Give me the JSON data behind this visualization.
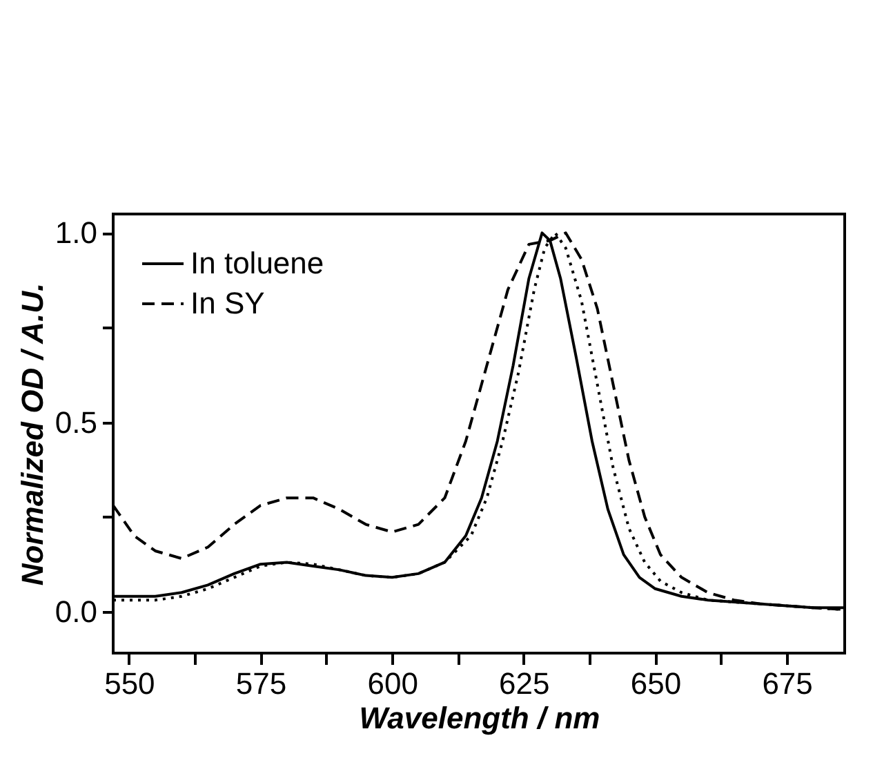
{
  "chart_data": {
    "type": "line",
    "xlabel": "Wavelength / nm",
    "ylabel": "Normalized OD / A.U.",
    "xlim": [
      547,
      686
    ],
    "ylim": [
      -0.11,
      1.05
    ],
    "xticks": [
      550,
      {
        "value": 562.5,
        "label": null
      },
      575,
      {
        "value": 587.5,
        "label": null
      },
      600,
      {
        "value": 612.5,
        "label": null
      },
      625,
      {
        "value": 637.5,
        "label": null
      },
      650,
      {
        "value": 662.5,
        "label": null
      },
      675
    ],
    "yticks": [
      {
        "value": 0,
        "label": "0.0"
      },
      {
        "value": 0.25,
        "label": null
      },
      {
        "value": 0.5,
        "label": "0.5"
      },
      {
        "value": 0.75,
        "label": null
      },
      {
        "value": 1,
        "label": "1.0"
      }
    ],
    "legend": "top left",
    "grid": false,
    "series": [
      {
        "name": "In toluene",
        "color": "#000000",
        "line_style": "solid",
        "x": [
          547,
          555,
          560,
          565,
          570,
          575,
          580,
          585,
          590,
          595,
          600,
          605,
          610,
          614,
          617,
          620,
          623,
          626,
          628.5,
          630,
          632,
          635,
          638,
          641,
          644,
          647,
          650,
          655,
          660,
          670,
          680,
          686
        ],
        "values": [
          0.04,
          0.04,
          0.05,
          0.07,
          0.1,
          0.125,
          0.13,
          0.12,
          0.11,
          0.095,
          0.09,
          0.1,
          0.13,
          0.2,
          0.3,
          0.45,
          0.65,
          0.88,
          1.0,
          0.98,
          0.88,
          0.67,
          0.45,
          0.27,
          0.15,
          0.09,
          0.06,
          0.04,
          0.03,
          0.02,
          0.01,
          0.01
        ]
      },
      {
        "color": "#000000",
        "line_style": "dotted",
        "x": [
          547,
          555,
          560,
          565,
          570,
          575,
          580,
          585,
          590,
          595,
          600,
          605,
          610,
          615,
          618,
          621,
          624,
          627,
          629,
          631,
          633,
          636,
          639,
          642,
          645,
          648,
          651,
          655,
          660,
          670,
          680,
          686
        ],
        "values": [
          0.03,
          0.03,
          0.04,
          0.06,
          0.09,
          0.12,
          0.13,
          0.125,
          0.11,
          0.095,
          0.09,
          0.1,
          0.13,
          0.2,
          0.3,
          0.45,
          0.63,
          0.85,
          0.96,
          1.0,
          0.96,
          0.82,
          0.6,
          0.38,
          0.22,
          0.13,
          0.08,
          0.05,
          0.03,
          0.02,
          0.01,
          0.005
        ]
      },
      {
        "name": "In SY",
        "color": "#000000",
        "line_style": "dashed",
        "x": [
          547,
          551,
          555,
          560,
          565,
          570,
          575,
          580,
          585,
          590,
          595,
          600,
          605,
          610,
          614,
          618,
          622,
          626,
          630,
          633,
          636,
          639,
          642,
          645,
          648,
          651,
          655,
          660,
          665,
          670,
          680,
          686
        ],
        "values": [
          0.28,
          0.2,
          0.16,
          0.14,
          0.17,
          0.23,
          0.28,
          0.3,
          0.3,
          0.27,
          0.23,
          0.21,
          0.23,
          0.3,
          0.45,
          0.65,
          0.85,
          0.97,
          0.98,
          1.0,
          0.93,
          0.8,
          0.6,
          0.4,
          0.25,
          0.15,
          0.09,
          0.05,
          0.03,
          0.02,
          0.01,
          0.005
        ]
      }
    ]
  }
}
